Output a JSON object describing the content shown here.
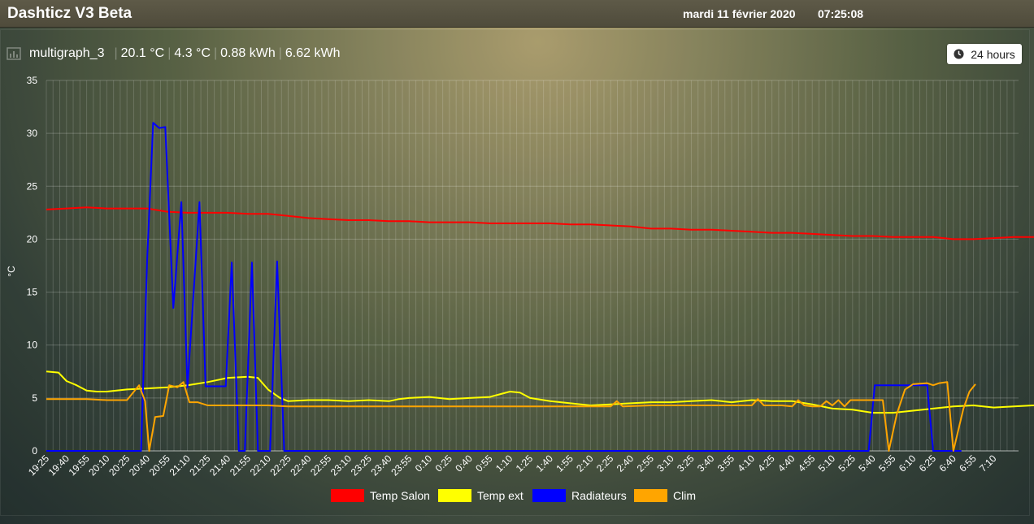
{
  "app": {
    "title": "Dashticz V3 Beta",
    "date": "mardi 11 février 2020",
    "time": "07:25:08"
  },
  "block": {
    "name": "multigraph_3",
    "values": [
      "20.1 °C",
      "4.3 °C",
      "0.88 kWh",
      "6.62 kWh"
    ],
    "range_button": "24 hours",
    "range_icon": "clock-icon"
  },
  "chart_data": {
    "type": "line",
    "ylabel": "°C",
    "ylim": [
      0,
      35
    ],
    "yticks": [
      0,
      5,
      10,
      15,
      20,
      25,
      30,
      35
    ],
    "grid": true,
    "legend_position": "bottom",
    "x": [
      "19:25",
      "19:40",
      "19:55",
      "20:10",
      "20:25",
      "20:40",
      "20:55",
      "21:10",
      "21:25",
      "21:40",
      "21:55",
      "22:10",
      "22:25",
      "22:40",
      "22:55",
      "23:10",
      "23:25",
      "23:40",
      "23:55",
      "0:10",
      "0:25",
      "0:40",
      "0:55",
      "1:10",
      "1:25",
      "1:40",
      "1:55",
      "2:10",
      "2:25",
      "2:40",
      "2:55",
      "3:10",
      "3:25",
      "3:40",
      "3:55",
      "4:10",
      "4:25",
      "4:40",
      "4:55",
      "5:10",
      "5:25",
      "5:40",
      "5:55",
      "6:10",
      "6:25",
      "6:40",
      "6:55",
      "7:10"
    ],
    "series": [
      {
        "name": "Temp Salon",
        "color": "#ff0000",
        "points": [
          [
            0,
            22.8
          ],
          [
            1,
            22.9
          ],
          [
            2,
            23.0
          ],
          [
            3,
            22.9
          ],
          [
            4,
            22.9
          ],
          [
            5,
            22.9
          ],
          [
            6,
            22.6
          ],
          [
            7,
            22.5
          ],
          [
            8,
            22.5
          ],
          [
            9,
            22.5
          ],
          [
            10,
            22.4
          ],
          [
            11,
            22.4
          ],
          [
            12,
            22.2
          ],
          [
            13,
            22.0
          ],
          [
            14,
            21.9
          ],
          [
            15,
            21.8
          ],
          [
            16,
            21.8
          ],
          [
            17,
            21.7
          ],
          [
            18,
            21.7
          ],
          [
            19,
            21.6
          ],
          [
            20,
            21.6
          ],
          [
            21,
            21.6
          ],
          [
            22,
            21.5
          ],
          [
            23,
            21.5
          ],
          [
            24,
            21.5
          ],
          [
            25,
            21.5
          ],
          [
            26,
            21.4
          ],
          [
            27,
            21.4
          ],
          [
            28,
            21.3
          ],
          [
            29,
            21.2
          ],
          [
            30,
            21.0
          ],
          [
            31,
            21.0
          ],
          [
            32,
            20.9
          ],
          [
            33,
            20.9
          ],
          [
            34,
            20.8
          ],
          [
            35,
            20.7
          ],
          [
            36,
            20.6
          ],
          [
            37,
            20.6
          ],
          [
            38,
            20.5
          ],
          [
            39,
            20.4
          ],
          [
            40,
            20.3
          ],
          [
            41,
            20.3
          ],
          [
            42,
            20.2
          ],
          [
            43,
            20.2
          ],
          [
            44,
            20.2
          ],
          [
            45,
            20.0
          ],
          [
            46,
            20.0
          ],
          [
            47,
            20.1
          ],
          [
            48,
            20.2
          ],
          [
            49,
            20.2
          ],
          [
            49.5,
            20.0
          ],
          [
            50,
            20.1
          ]
        ]
      },
      {
        "name": "Temp ext",
        "color": "#ffff00",
        "points": [
          [
            0,
            7.5
          ],
          [
            0.6,
            7.4
          ],
          [
            1,
            6.6
          ],
          [
            1.5,
            6.2
          ],
          [
            2,
            5.7
          ],
          [
            2.5,
            5.6
          ],
          [
            3,
            5.6
          ],
          [
            4,
            5.8
          ],
          [
            5,
            5.9
          ],
          [
            6,
            6.0
          ],
          [
            7,
            6.2
          ],
          [
            8,
            6.5
          ],
          [
            9,
            6.9
          ],
          [
            10,
            7.0
          ],
          [
            10.5,
            6.9
          ],
          [
            11,
            5.8
          ],
          [
            11.6,
            5.0
          ],
          [
            12,
            4.7
          ],
          [
            13,
            4.8
          ],
          [
            14,
            4.8
          ],
          [
            15,
            4.7
          ],
          [
            16,
            4.8
          ],
          [
            17,
            4.7
          ],
          [
            17.5,
            4.9
          ],
          [
            18,
            5.0
          ],
          [
            19,
            5.1
          ],
          [
            20,
            4.9
          ],
          [
            21,
            5.0
          ],
          [
            22,
            5.1
          ],
          [
            23,
            5.6
          ],
          [
            23.5,
            5.5
          ],
          [
            24,
            5.0
          ],
          [
            25,
            4.7
          ],
          [
            26,
            4.5
          ],
          [
            27,
            4.3
          ],
          [
            28,
            4.4
          ],
          [
            29,
            4.5
          ],
          [
            30,
            4.6
          ],
          [
            31,
            4.6
          ],
          [
            32,
            4.7
          ],
          [
            33,
            4.8
          ],
          [
            34,
            4.6
          ],
          [
            35,
            4.8
          ],
          [
            36,
            4.7
          ],
          [
            37,
            4.7
          ],
          [
            38,
            4.4
          ],
          [
            39,
            4.0
          ],
          [
            40,
            3.9
          ],
          [
            41,
            3.6
          ],
          [
            42,
            3.6
          ],
          [
            43,
            3.8
          ],
          [
            44,
            4.0
          ],
          [
            45,
            4.2
          ],
          [
            46,
            4.3
          ],
          [
            47,
            4.1
          ],
          [
            48,
            4.2
          ],
          [
            49,
            4.3
          ],
          [
            50,
            4.3
          ]
        ]
      },
      {
        "name": "Radiateurs",
        "color": "#0000ff",
        "points": [
          [
            0,
            0
          ],
          [
            4.7,
            0
          ],
          [
            5.0,
            18.0
          ],
          [
            5.3,
            31.0
          ],
          [
            5.6,
            30.5
          ],
          [
            5.9,
            30.6
          ],
          [
            6.3,
            13.5
          ],
          [
            6.7,
            23.5
          ],
          [
            7.0,
            6.0
          ],
          [
            7.6,
            23.5
          ],
          [
            7.9,
            6.1
          ],
          [
            8.9,
            6.1
          ],
          [
            9.2,
            17.8
          ],
          [
            9.55,
            0
          ],
          [
            9.85,
            0
          ],
          [
            10.2,
            17.8
          ],
          [
            10.5,
            0
          ],
          [
            11.1,
            0
          ],
          [
            11.45,
            17.9
          ],
          [
            11.8,
            0
          ],
          [
            40.8,
            0
          ],
          [
            41.1,
            6.2
          ],
          [
            43.7,
            6.2
          ],
          [
            44.0,
            0
          ],
          [
            45.4,
            0
          ]
        ]
      },
      {
        "name": "Clim",
        "color": "#ffa500",
        "points": [
          [
            0,
            4.9
          ],
          [
            1,
            4.9
          ],
          [
            2,
            4.9
          ],
          [
            3,
            4.8
          ],
          [
            4,
            4.8
          ],
          [
            4.6,
            6.2
          ],
          [
            4.9,
            4.7
          ],
          [
            5.1,
            0
          ],
          [
            5.4,
            3.2
          ],
          [
            5.8,
            3.3
          ],
          [
            6.1,
            6.2
          ],
          [
            6.5,
            6.0
          ],
          [
            6.8,
            6.5
          ],
          [
            7.1,
            4.6
          ],
          [
            7.5,
            4.6
          ],
          [
            8,
            4.3
          ],
          [
            9,
            4.3
          ],
          [
            10,
            4.3
          ],
          [
            11,
            4.3
          ],
          [
            12,
            4.2
          ],
          [
            14,
            4.2
          ],
          [
            16,
            4.2
          ],
          [
            18,
            4.2
          ],
          [
            20,
            4.2
          ],
          [
            22,
            4.2
          ],
          [
            24,
            4.2
          ],
          [
            26,
            4.2
          ],
          [
            27,
            4.2
          ],
          [
            28,
            4.2
          ],
          [
            28.3,
            4.7
          ],
          [
            28.6,
            4.2
          ],
          [
            30,
            4.3
          ],
          [
            32,
            4.3
          ],
          [
            34,
            4.3
          ],
          [
            35,
            4.3
          ],
          [
            35.3,
            4.9
          ],
          [
            35.6,
            4.3
          ],
          [
            36.5,
            4.3
          ],
          [
            37,
            4.2
          ],
          [
            37.3,
            4.8
          ],
          [
            37.6,
            4.3
          ],
          [
            38,
            4.2
          ],
          [
            38.4,
            4.2
          ],
          [
            38.7,
            4.7
          ],
          [
            39,
            4.3
          ],
          [
            39.3,
            4.8
          ],
          [
            39.6,
            4.2
          ],
          [
            39.9,
            4.8
          ],
          [
            40.2,
            4.8
          ],
          [
            41.5,
            4.8
          ],
          [
            41.8,
            0
          ],
          [
            42.2,
            3.5
          ],
          [
            42.6,
            5.8
          ],
          [
            43.0,
            6.3
          ],
          [
            43.7,
            6.4
          ],
          [
            44.0,
            6.2
          ],
          [
            44.3,
            6.4
          ],
          [
            44.7,
            6.5
          ],
          [
            45.0,
            0
          ],
          [
            45.5,
            4.0
          ],
          [
            45.8,
            5.6
          ],
          [
            46.1,
            6.3
          ]
        ]
      }
    ]
  }
}
